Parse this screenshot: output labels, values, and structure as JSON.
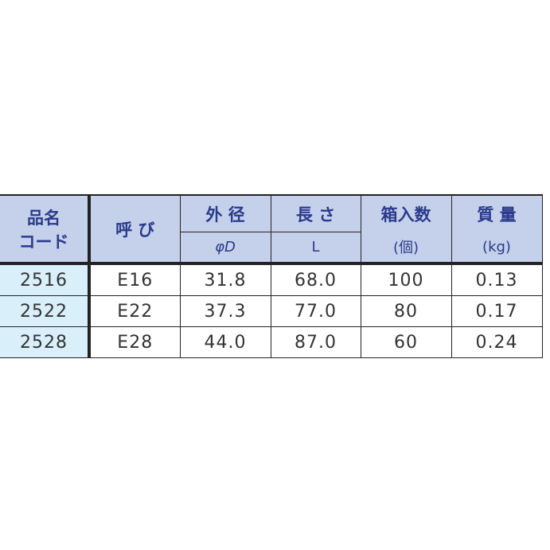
{
  "headers": {
    "code": "品名\nコード",
    "code_line1": "品名",
    "code_line2": "コード",
    "nominal": "呼 び",
    "outer_diameter": "外 径",
    "outer_diameter_unit": "φD",
    "length": "長 さ",
    "length_unit": "L",
    "box_qty": "箱入数",
    "box_qty_unit": "(個)",
    "weight": "質 量",
    "weight_unit": "(kg)"
  },
  "colors": {
    "header_bg": "#c5d1ea",
    "header_text": "#2b3a8c",
    "code_bg": "#d9effa"
  },
  "rows": [
    {
      "code": "2516",
      "nominal": "E16",
      "diameter": "31.8",
      "length": "68.0",
      "qty": "100",
      "weight": "0.13"
    },
    {
      "code": "2522",
      "nominal": "E22",
      "diameter": "37.3",
      "length": "77.0",
      "qty": "80",
      "weight": "0.17"
    },
    {
      "code": "2528",
      "nominal": "E28",
      "diameter": "44.0",
      "length": "87.0",
      "qty": "60",
      "weight": "0.24"
    }
  ]
}
